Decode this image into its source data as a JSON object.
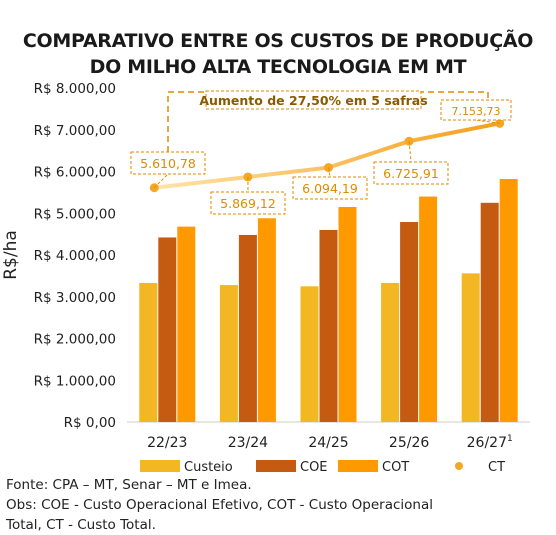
{
  "title_line1": "COMPARATIVO ENTRE OS CUSTOS DE PRODUÇÃO",
  "title_line2": "DO MILHO ALTA TECNOLOGIA EM MT",
  "annotation": "Aumento de 27,50% em 5 safras",
  "source": "Fonte: CPA – MT, Senar – MT e Imea.",
  "note_line1": "Obs: COE - Custo Operacional Efetivo, COT - Custo Operacional",
  "note_line2": "Total, CT - Custo Total.",
  "colors": {
    "custeio": "#F2B722",
    "coe": "#C55A11",
    "cot": "#FF9900",
    "ct_line": "#FFD58A",
    "ct_point": "#F5A623",
    "annotation": "#E08A00"
  },
  "chart_data": {
    "type": "bar",
    "ylabel": "R$/ha",
    "ylim": [
      0,
      8000
    ],
    "yticks": [
      0,
      1000,
      2000,
      3000,
      4000,
      5000,
      6000,
      7000,
      8000
    ],
    "ytick_labels": [
      "R$ 0,00",
      "R$ 1.000,00",
      "R$ 2.000,00",
      "R$ 3.000,00",
      "R$ 4.000,00",
      "R$ 5.000,00",
      "R$ 6.000,00",
      "R$ 7.000,00",
      "R$ 8.000,00"
    ],
    "categories": [
      "22/23",
      "23/24",
      "24/25",
      "25/26",
      "26/27"
    ],
    "category_superscripts": [
      "",
      "",
      "",
      "",
      "1"
    ],
    "series": [
      {
        "name": "Custeio",
        "key": "custeio",
        "kind": "bar",
        "values": [
          3330,
          3280,
          3250,
          3330,
          3560
        ]
      },
      {
        "name": "COE",
        "key": "coe",
        "kind": "bar",
        "values": [
          4420,
          4480,
          4600,
          4790,
          5250
        ]
      },
      {
        "name": "COT",
        "key": "cot",
        "kind": "bar",
        "values": [
          4680,
          4880,
          5150,
          5400,
          5820
        ]
      },
      {
        "name": "CT",
        "key": "ct",
        "kind": "line",
        "values": [
          5610.78,
          5869.12,
          6094.19,
          6725.91,
          7153.73
        ],
        "labels": [
          "5.610,78",
          "5.869,12",
          "6.094,19",
          "6.725,91",
          "7.153,73"
        ]
      }
    ],
    "legend_position": "bottom"
  }
}
